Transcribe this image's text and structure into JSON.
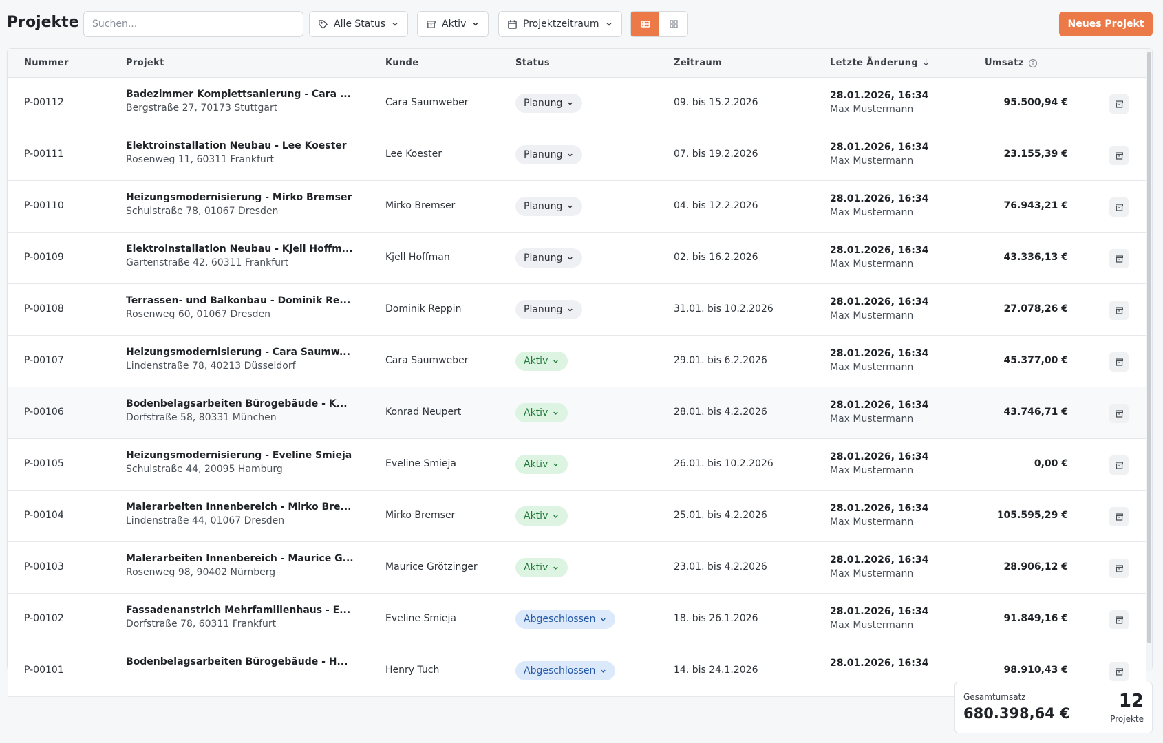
{
  "header": {
    "title": "Projekte",
    "search_placeholder": "Suchen...",
    "search_value": "",
    "filters": {
      "status_label": "Alle Status",
      "active_label": "Aktiv",
      "period_label": "Projektzeitraum"
    },
    "view_modes": [
      "list-view",
      "grid-view"
    ],
    "new_button_label": "Neues Projekt",
    "accent_color": "#ec7a48"
  },
  "table": {
    "columns": {
      "nummer": "Nummer",
      "projekt": "Projekt",
      "kunde": "Kunde",
      "status": "Status",
      "zeitraum": "Zeitraum",
      "letzte_aenderung": "Letzte Änderung",
      "umsatz": "Umsatz"
    },
    "sort_indicator": "↓",
    "rows": [
      {
        "nummer": "P-00112",
        "title": "Badezimmer Komplettsanierung - Cara ...",
        "address": "Bergstraße 27, 70173 Stuttgart",
        "kunde": "Cara Saumweber",
        "status": "Planung",
        "status_type": "planung",
        "zeitraum": "09. bis 15.2.2026",
        "changed_at": "28.01.2026, 16:34",
        "changed_by": "Max Mustermann",
        "umsatz": "95.500,94 €"
      },
      {
        "nummer": "P-00111",
        "title": "Elektroinstallation Neubau - Lee Koester",
        "address": "Rosenweg 11, 60311 Frankfurt",
        "kunde": "Lee Koester",
        "status": "Planung",
        "status_type": "planung",
        "zeitraum": "07. bis 19.2.2026",
        "changed_at": "28.01.2026, 16:34",
        "changed_by": "Max Mustermann",
        "umsatz": "23.155,39 €"
      },
      {
        "nummer": "P-00110",
        "title": "Heizungsmodernisierung - Mirko Bremser",
        "address": "Schulstraße 78, 01067 Dresden",
        "kunde": "Mirko Bremser",
        "status": "Planung",
        "status_type": "planung",
        "zeitraum": "04. bis 12.2.2026",
        "changed_at": "28.01.2026, 16:34",
        "changed_by": "Max Mustermann",
        "umsatz": "76.943,21 €"
      },
      {
        "nummer": "P-00109",
        "title": "Elektroinstallation Neubau - Kjell Hoffm...",
        "address": "Gartenstraße 42, 60311 Frankfurt",
        "kunde": "Kjell Hoffman",
        "status": "Planung",
        "status_type": "planung",
        "zeitraum": "02. bis 16.2.2026",
        "changed_at": "28.01.2026, 16:34",
        "changed_by": "Max Mustermann",
        "umsatz": "43.336,13 €"
      },
      {
        "nummer": "P-00108",
        "title": "Terrassen- und Balkonbau - Dominik Re...",
        "address": "Rosenweg 60, 01067 Dresden",
        "kunde": "Dominik Reppin",
        "status": "Planung",
        "status_type": "planung",
        "zeitraum": "31.01. bis 10.2.2026",
        "changed_at": "28.01.2026, 16:34",
        "changed_by": "Max Mustermann",
        "umsatz": "27.078,26 €"
      },
      {
        "nummer": "P-00107",
        "title": "Heizungsmodernisierung - Cara Saumw...",
        "address": "Lindenstraße 78, 40213 Düsseldorf",
        "kunde": "Cara Saumweber",
        "status": "Aktiv",
        "status_type": "aktiv",
        "zeitraum": "29.01. bis 6.2.2026",
        "changed_at": "28.01.2026, 16:34",
        "changed_by": "Max Mustermann",
        "umsatz": "45.377,00 €"
      },
      {
        "nummer": "P-00106",
        "title": "Bodenbelagsarbeiten Bürogebäude - K...",
        "address": "Dorfstraße 58, 80331 München",
        "kunde": "Konrad Neupert",
        "status": "Aktiv",
        "status_type": "aktiv",
        "zeitraum": "28.01. bis 4.2.2026",
        "changed_at": "28.01.2026, 16:34",
        "changed_by": "Max Mustermann",
        "umsatz": "43.746,71 €"
      },
      {
        "nummer": "P-00105",
        "title": "Heizungsmodernisierung - Eveline Smieja",
        "address": "Schulstraße 44, 20095 Hamburg",
        "kunde": "Eveline Smieja",
        "status": "Aktiv",
        "status_type": "aktiv",
        "zeitraum": "26.01. bis 10.2.2026",
        "changed_at": "28.01.2026, 16:34",
        "changed_by": "Max Mustermann",
        "umsatz": "0,00 €"
      },
      {
        "nummer": "P-00104",
        "title": "Malerarbeiten Innenbereich - Mirko Bre...",
        "address": "Lindenstraße 44, 01067 Dresden",
        "kunde": "Mirko Bremser",
        "status": "Aktiv",
        "status_type": "aktiv",
        "zeitraum": "25.01. bis 4.2.2026",
        "changed_at": "28.01.2026, 16:34",
        "changed_by": "Max Mustermann",
        "umsatz": "105.595,29 €"
      },
      {
        "nummer": "P-00103",
        "title": "Malerarbeiten Innenbereich - Maurice G...",
        "address": "Rosenweg 98, 90402 Nürnberg",
        "kunde": "Maurice Grötzinger",
        "status": "Aktiv",
        "status_type": "aktiv",
        "zeitraum": "23.01. bis 4.2.2026",
        "changed_at": "28.01.2026, 16:34",
        "changed_by": "Max Mustermann",
        "umsatz": "28.906,12 €"
      },
      {
        "nummer": "P-00102",
        "title": "Fassadenanstrich Mehrfamilienhaus - E...",
        "address": "Dorfstraße 78, 60311 Frankfurt",
        "kunde": "Eveline Smieja",
        "status": "Abgeschlossen",
        "status_type": "abgeschlossen",
        "zeitraum": "18. bis 26.1.2026",
        "changed_at": "28.01.2026, 16:34",
        "changed_by": "Max Mustermann",
        "umsatz": "91.849,16 €"
      },
      {
        "nummer": "P-00101",
        "title": "Bodenbelagsarbeiten Bürogebäude - H...",
        "address": "",
        "kunde": "Henry Tuch",
        "status": "Abgeschlossen",
        "status_type": "abgeschlossen",
        "zeitraum": "14. bis 24.1.2026",
        "changed_at": "28.01.2026, 16:34",
        "changed_by": "",
        "umsatz": "98.910,43 €"
      }
    ]
  },
  "summary": {
    "total_label": "Gesamtumsatz",
    "total_value": "680.398,64 €",
    "count": "12",
    "count_label": "Projekte"
  }
}
